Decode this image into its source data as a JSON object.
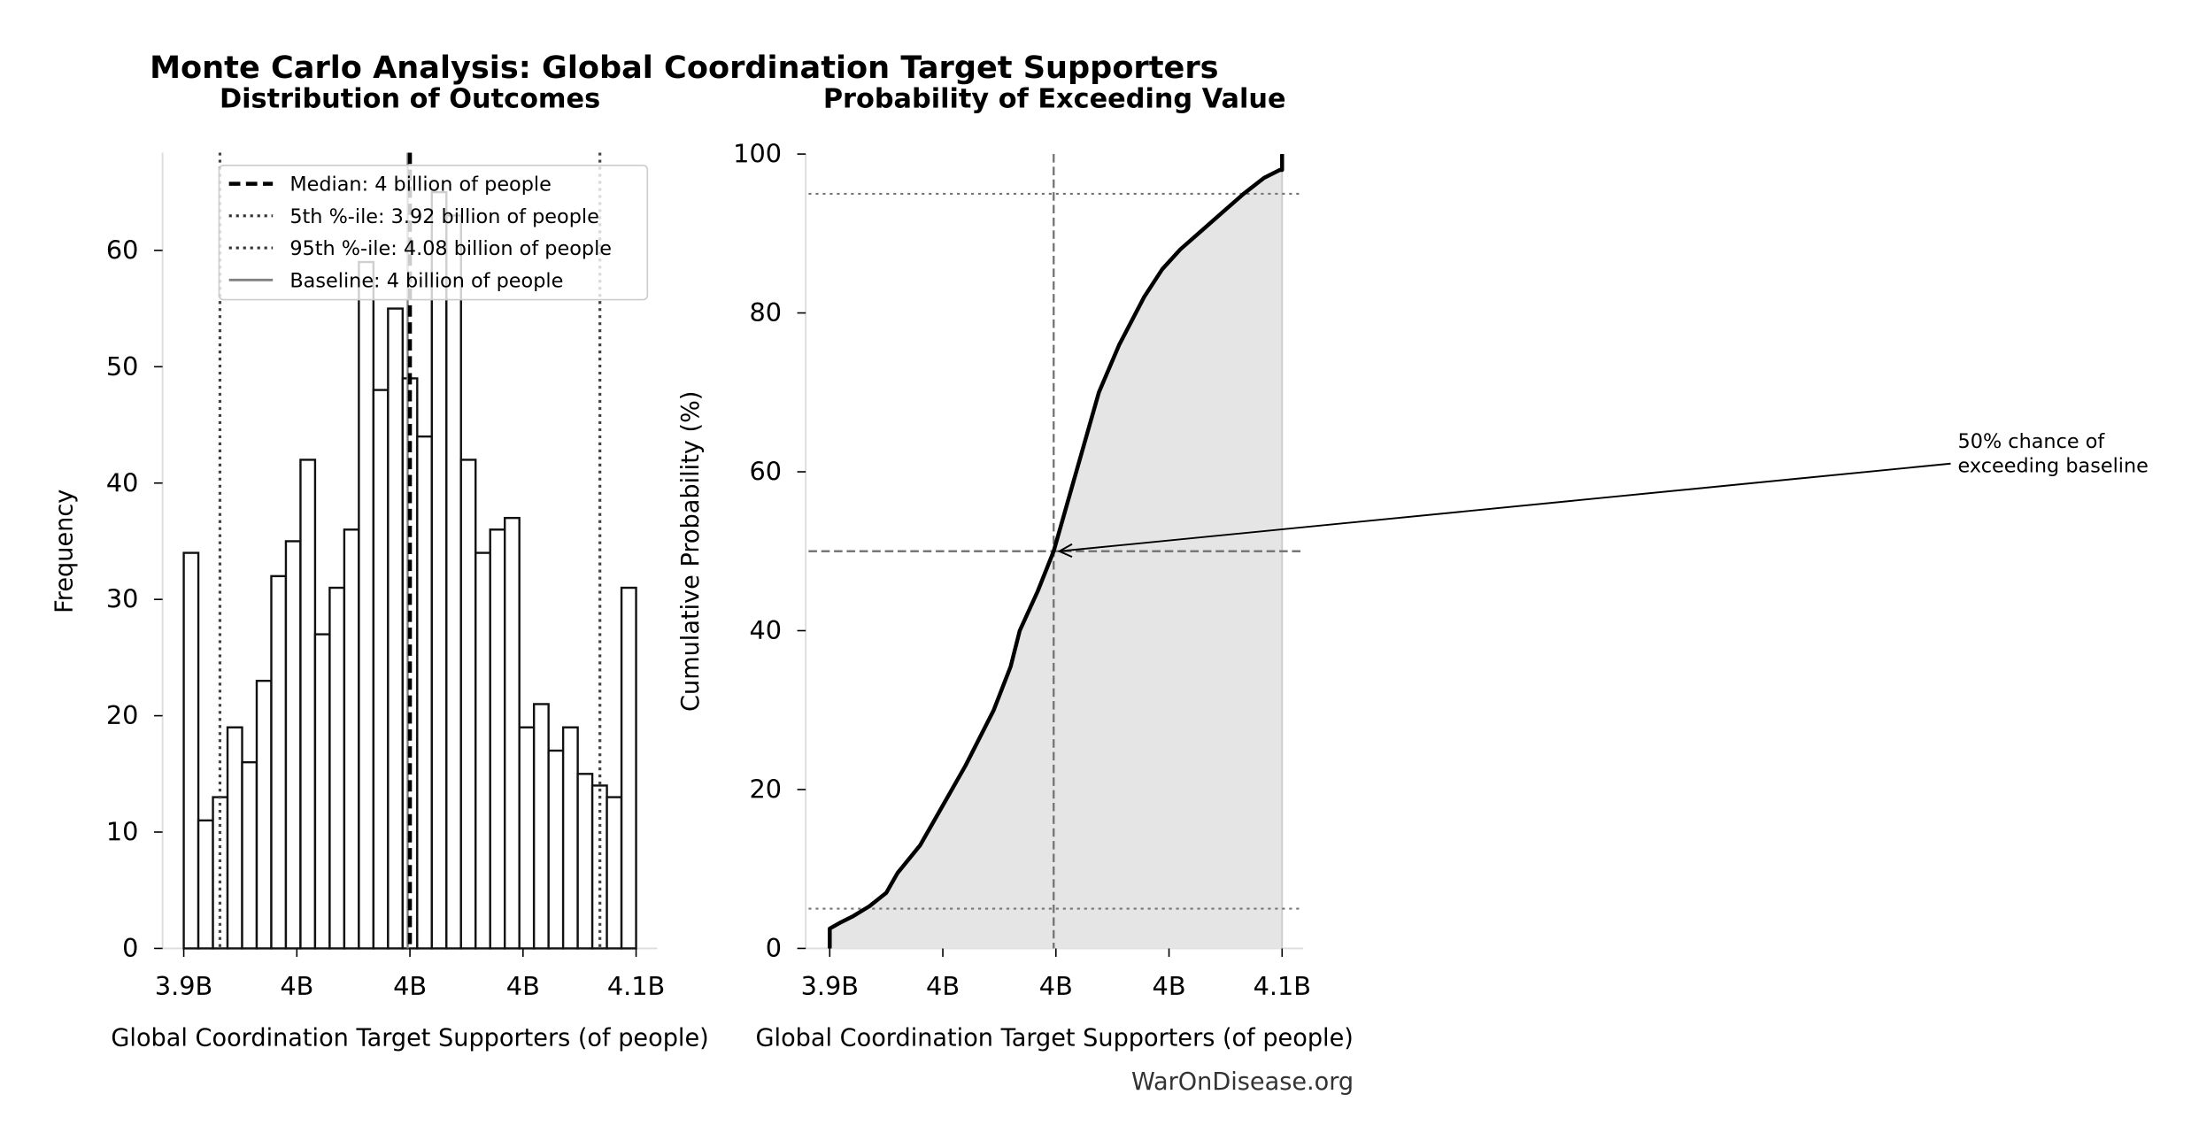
{
  "title": "Monte Carlo Analysis: Global Coordination Target Supporters",
  "footer": "WarOnDisease.org",
  "chart_data": [
    {
      "type": "bar",
      "subtitle": "Distribution of Outcomes",
      "xlabel": "Global Coordination Target Supporters (of people)",
      "ylabel": "Frequency",
      "xlim": [
        3.9,
        4.1
      ],
      "ylim": [
        0,
        68.4
      ],
      "x_unit": "billion",
      "bin_range": [
        3.9,
        4.1
      ],
      "values": [
        34,
        11,
        13,
        19,
        16,
        23,
        32,
        35,
        42,
        27,
        31,
        36,
        59,
        48,
        55,
        49,
        44,
        65,
        63,
        42,
        34,
        36,
        37,
        19,
        21,
        17,
        19,
        15,
        14,
        13,
        31
      ],
      "xticks": [
        {
          "v": 3.9,
          "label": "3.9B"
        },
        {
          "v": 3.95,
          "label": "4B"
        },
        {
          "v": 4.0,
          "label": "4B"
        },
        {
          "v": 4.05,
          "label": "4B"
        },
        {
          "v": 4.1,
          "label": "4.1B"
        }
      ],
      "yticks": [
        {
          "v": 0,
          "label": "0"
        },
        {
          "v": 10,
          "label": "10"
        },
        {
          "v": 20,
          "label": "20"
        },
        {
          "v": 30,
          "label": "30"
        },
        {
          "v": 40,
          "label": "40"
        },
        {
          "v": 50,
          "label": "50"
        },
        {
          "v": 60,
          "label": "60"
        }
      ],
      "lines": {
        "median": 4.0,
        "p5": 3.916,
        "p95": 4.084,
        "baseline": 3.999
      },
      "legend_position": "top-right",
      "legend": [
        {
          "label": "Median: 4 billion of people",
          "style": "dashed",
          "color": "#000000"
        },
        {
          "label": "5th %-ile: 3.92 billion of people",
          "style": "dotted",
          "color": "#333333"
        },
        {
          "label": "95th %-ile: 4.08 billion of people",
          "style": "dotted",
          "color": "#333333"
        },
        {
          "label": "Baseline: 4 billion of people",
          "style": "solid",
          "color": "#808080"
        }
      ]
    },
    {
      "type": "area",
      "subtitle": "Probability of Exceeding Value",
      "xlabel": "Global Coordination Target Supporters (of people)",
      "ylabel": "Cumulative Probability (%)",
      "xlim": [
        3.9,
        4.1
      ],
      "ylim": [
        0,
        100
      ],
      "x_unit": "billion",
      "x": [
        3.9,
        3.9,
        3.905,
        3.91,
        3.9175,
        3.925,
        3.93,
        3.94,
        3.953,
        3.96,
        3.9725,
        3.98,
        3.984,
        3.992,
        3.999,
        4.004,
        4.009,
        4.014,
        4.019,
        4.028,
        4.039,
        4.047,
        4.055,
        4.063,
        4.073,
        4.083,
        4.092,
        4.099,
        4.1,
        4.1
      ],
      "y": [
        0,
        2.5,
        3.3,
        4,
        5.3,
        7,
        9.5,
        13,
        19.5,
        23,
        30,
        35.5,
        40,
        45,
        50,
        55,
        60,
        65,
        70,
        76,
        82,
        85.5,
        88,
        90,
        92.5,
        95,
        97,
        98,
        98,
        100
      ],
      "xticks": [
        {
          "v": 3.9,
          "label": "3.9B"
        },
        {
          "v": 3.95,
          "label": "4B"
        },
        {
          "v": 4.0,
          "label": "4B"
        },
        {
          "v": 4.05,
          "label": "4B"
        },
        {
          "v": 4.1,
          "label": "4.1B"
        }
      ],
      "yticks": [
        {
          "v": 0,
          "label": "0"
        },
        {
          "v": 20,
          "label": "20"
        },
        {
          "v": 40,
          "label": "40"
        },
        {
          "v": 60,
          "label": "60"
        },
        {
          "v": 80,
          "label": "80"
        },
        {
          "v": 100,
          "label": "100"
        }
      ],
      "reference_lines": {
        "h_dotted": [
          5,
          95
        ],
        "h_dashed": 50,
        "v_dashed": 3.999
      },
      "fill_color": "#e5e5e5",
      "annotation": {
        "lines": [
          "50% chance of",
          "exceeding baseline"
        ],
        "target": [
          3.999,
          50
        ]
      }
    }
  ]
}
